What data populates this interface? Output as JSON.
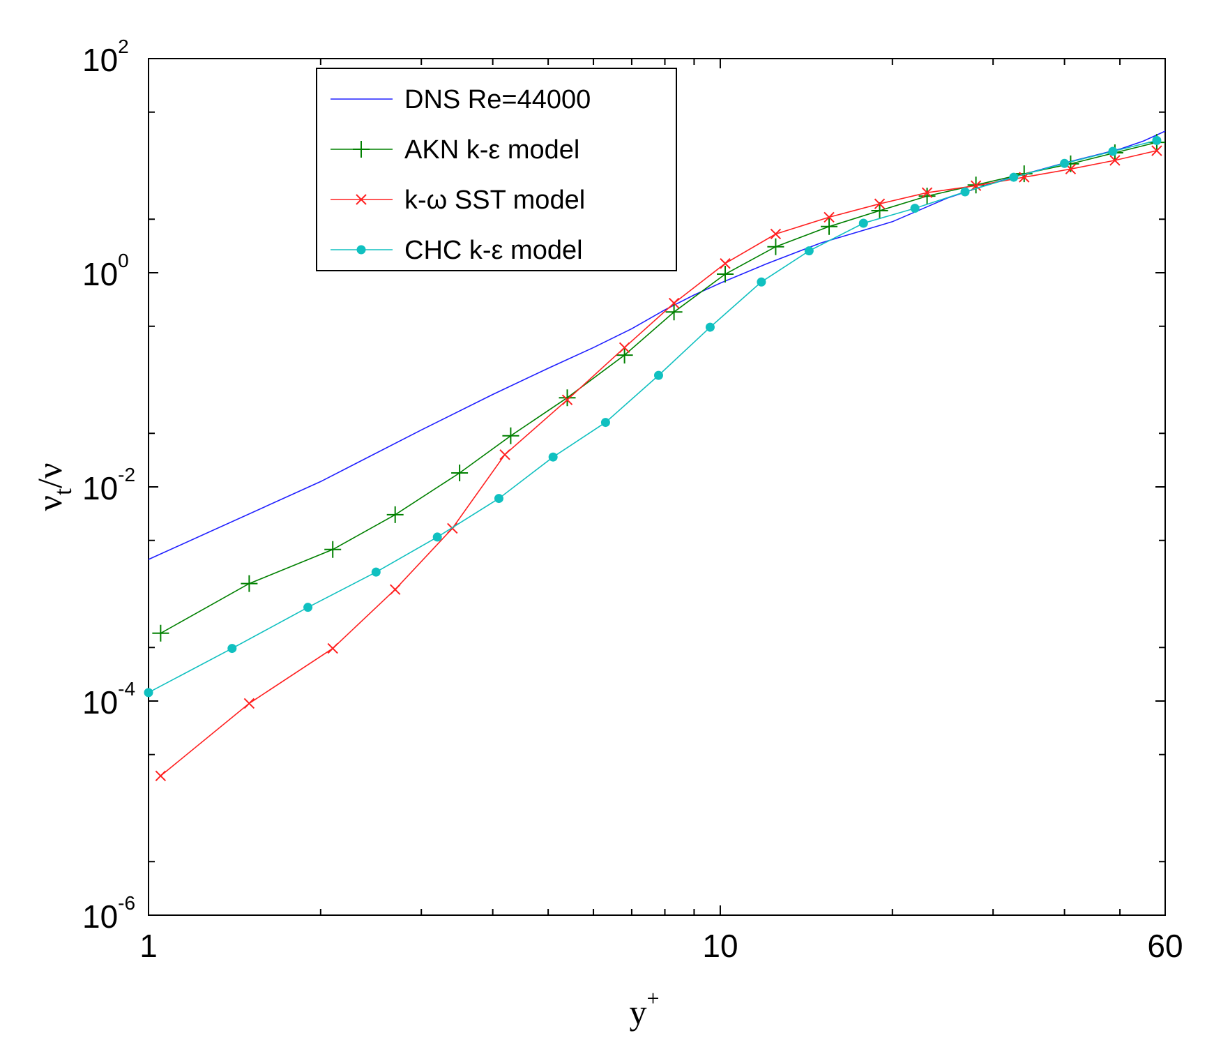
{
  "chart_data": {
    "type": "line",
    "xscale": "log",
    "yscale": "log",
    "xlim": [
      1,
      60
    ],
    "ylim": [
      1e-06,
      100
    ],
    "xticks": [
      {
        "value": 1,
        "label": "1"
      },
      {
        "value": 10,
        "label": "10"
      },
      {
        "value": 60,
        "label": "60"
      }
    ],
    "yticks": [
      {
        "value": 1e-06,
        "base": "10",
        "exp": "-6"
      },
      {
        "value": 0.0001,
        "base": "10",
        "exp": "-4"
      },
      {
        "value": 0.01,
        "base": "10",
        "exp": "-2"
      },
      {
        "value": 1,
        "base": "10",
        "exp": "0"
      },
      {
        "value": 100,
        "base": "10",
        "exp": "2"
      }
    ],
    "xlabel": {
      "main": "y",
      "sup": "+"
    },
    "ylabel": {
      "nu": "ν",
      "sub": "t",
      "slash": "/",
      "nu2": "ν"
    },
    "legend_position": "top-left",
    "series": [
      {
        "name": "DNS Re=44000",
        "color": "#2020ff",
        "marker": "none",
        "x": [
          1.0,
          2.0,
          3.0,
          4.0,
          5.0,
          6.0,
          7.0,
          8.0,
          9.0,
          10.0,
          12.0,
          15.0,
          20.0,
          25.0,
          30.0,
          35.0,
          40.0,
          45.0,
          50.0,
          55.0,
          60.0
        ],
        "y": [
          0.0021,
          0.0112,
          0.034,
          0.073,
          0.128,
          0.2,
          0.3,
          0.45,
          0.62,
          0.8,
          1.2,
          1.9,
          3.0,
          5.0,
          6.9,
          8.7,
          10.6,
          12.4,
          14.3,
          17.0,
          21.0
        ]
      },
      {
        "name": "AKN k-ε model",
        "color": "#008000",
        "marker": "plus",
        "x": [
          1.05,
          1.5,
          2.1,
          2.7,
          3.5,
          4.3,
          5.4,
          6.8,
          8.3,
          10.2,
          12.5,
          15.5,
          19.0,
          23.0,
          28.0,
          34.0,
          41.0,
          49.0,
          58.0
        ],
        "y": [
          0.00043,
          0.00125,
          0.0026,
          0.0055,
          0.0135,
          0.03,
          0.068,
          0.17,
          0.43,
          0.97,
          1.75,
          2.7,
          3.8,
          5.2,
          6.6,
          8.4,
          10.4,
          13.2,
          16.5
        ]
      },
      {
        "name": "k-ω SST model",
        "color": "#ff2020",
        "marker": "x",
        "x": [
          1.05,
          1.5,
          2.1,
          2.7,
          3.4,
          4.2,
          5.4,
          6.8,
          8.3,
          10.2,
          12.5,
          15.5,
          19.0,
          23.0,
          28.0,
          34.0,
          41.0,
          49.0,
          58.0
        ],
        "y": [
          2e-05,
          9.5e-05,
          0.00031,
          0.0011,
          0.0041,
          0.02,
          0.065,
          0.2,
          0.52,
          1.22,
          2.3,
          3.3,
          4.4,
          5.6,
          6.5,
          7.8,
          9.3,
          11.2,
          13.8
        ]
      },
      {
        "name": "CHC k-ε model",
        "color": "#10c0c0",
        "marker": "dot",
        "x": [
          1.0,
          1.4,
          1.9,
          2.5,
          3.2,
          4.1,
          5.1,
          6.3,
          7.8,
          9.6,
          11.8,
          14.3,
          17.8,
          21.9,
          26.8,
          32.6,
          40.0,
          48.6,
          58.0
        ],
        "y": [
          0.00012,
          0.00031,
          0.00075,
          0.0016,
          0.0034,
          0.0078,
          0.019,
          0.04,
          0.11,
          0.31,
          0.82,
          1.6,
          2.9,
          4.0,
          5.7,
          7.8,
          10.5,
          13.6,
          17.2
        ]
      }
    ]
  }
}
